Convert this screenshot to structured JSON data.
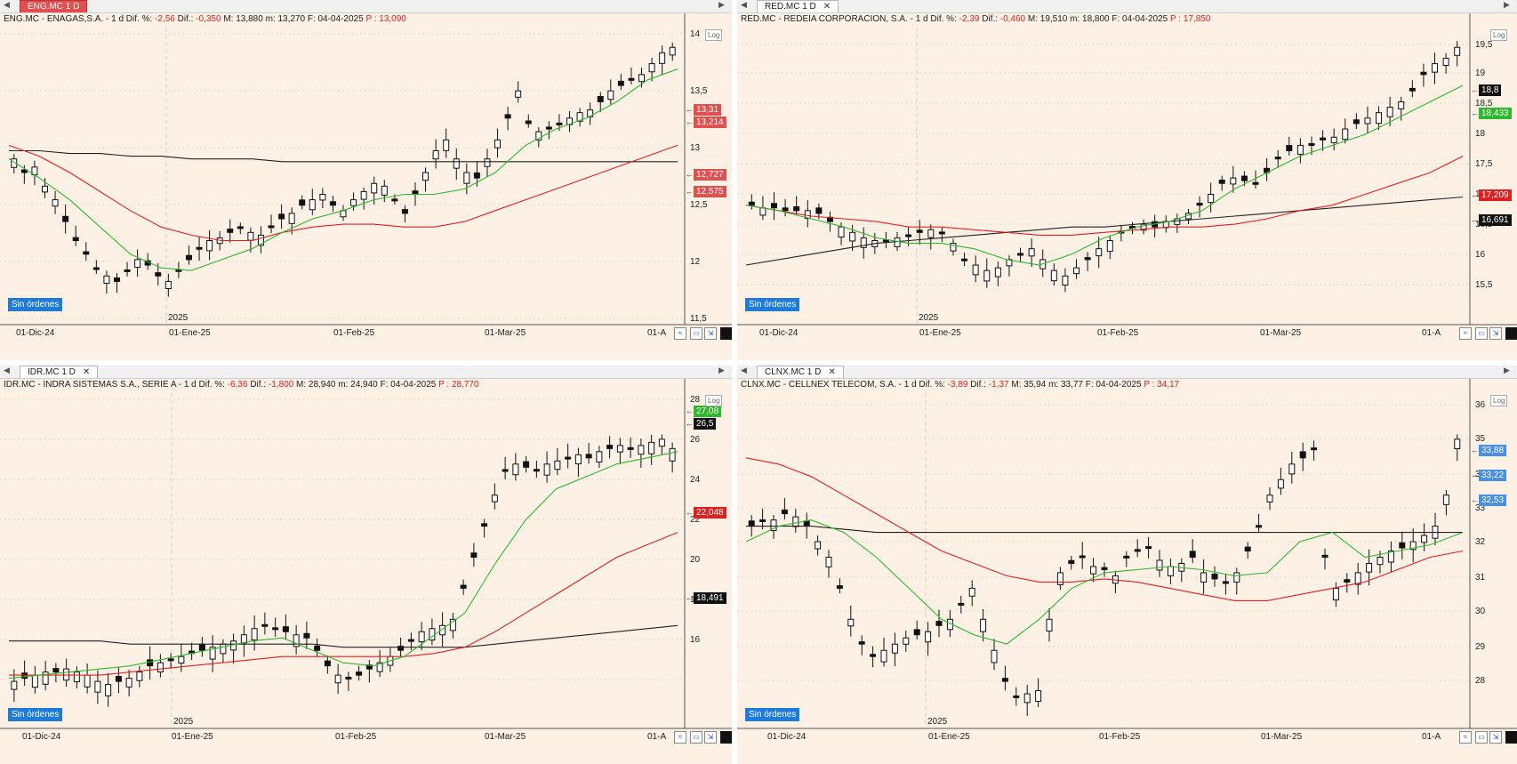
{
  "colors": {
    "ma_fast": "#2db82d",
    "ma_slow": "#e02020",
    "ma_long": "#222222",
    "bg": "#fdf1e6",
    "sin_btn": "#1e7bdc"
  },
  "panes": [
    {
      "tab_label": "ENG.MC 1 D",
      "tab_active": true,
      "info": {
        "head": "ENG.MC - ENAGAS,S.A. - 1 d Dif. %:",
        "pct": "-2,56",
        "dif_label": "Dif.:",
        "dif": "-0,350",
        "mm": "M: 13,880 m: 13,270 F: 04-04-2025",
        "p_label": "P :",
        "p": "13,090"
      },
      "y_ticks": [
        "14",
        "13,5",
        "13",
        "12,5",
        "12",
        "11,5"
      ],
      "x_ticks": [
        "01-Dic-24",
        "01-Ene-25",
        "01-Feb-25",
        "01-Mar-25",
        "01-A"
      ],
      "year_label": "2025",
      "tags": [
        {
          "text": "13,31",
          "color": "#e05050"
        },
        {
          "text": "13,214",
          "color": "#e05050"
        },
        {
          "text": "12,727",
          "color": "#e05050"
        },
        {
          "text": "12,575",
          "color": "#e05050"
        }
      ],
      "sin": "Sin órdenes",
      "log": "Log"
    },
    {
      "tab_label": "RED.MC 1 D",
      "tab_active": false,
      "info": {
        "head": "RED.MC - REDEIA CORPORACION, S.A. - 1 d Dif. %:",
        "pct": "-2,39",
        "dif_label": "Dif.:",
        "dif": "-0,460",
        "mm": "M: 19,510 m: 18,800 F: 04-04-2025",
        "p_label": "P :",
        "p": "17,850"
      },
      "y_ticks": [
        "19,5",
        "19",
        "18,5",
        "18",
        "17,5",
        "17",
        "16,5",
        "16",
        "15,5"
      ],
      "x_ticks": [
        "01-Dic-24",
        "01-Ene-25",
        "01-Feb-25",
        "01-Mar-25",
        "01-A"
      ],
      "year_label": "2025",
      "tags": [
        {
          "text": "18,8",
          "color": "#111111"
        },
        {
          "text": "18,433",
          "color": "#2db82d"
        },
        {
          "text": "17,209",
          "color": "#e02020"
        },
        {
          "text": "16,691",
          "color": "#111111"
        }
      ],
      "sin": "Sin órdenes",
      "log": "Log"
    },
    {
      "tab_label": "IDR.MC 1 D",
      "tab_active": false,
      "info": {
        "head": "IDR.MC - INDRA SISTEMAS S.A., SERIE A - 1 d Dif. %:",
        "pct": "-6,36",
        "dif_label": "Dif.:",
        "dif": "-1,800",
        "mm": "M: 28,940 m: 24,940 F: 04-04-2025",
        "p_label": "P :",
        "p": "28,770"
      },
      "y_ticks": [
        "28",
        "26",
        "24",
        "22",
        "20",
        "18",
        "16"
      ],
      "x_ticks": [
        "01-Dic-24",
        "01-Ene-25",
        "01-Feb-25",
        "01-Mar-25",
        "01-A"
      ],
      "year_label": "2025",
      "tags": [
        {
          "text": "27,08",
          "color": "#2db82d"
        },
        {
          "text": "26,5",
          "color": "#111111"
        },
        {
          "text": "22,048",
          "color": "#e02020"
        },
        {
          "text": "18,491",
          "color": "#111111"
        }
      ],
      "sin": "Sin órdenes",
      "log": "Log"
    },
    {
      "tab_label": "CLNX.MC 1 D",
      "tab_active": false,
      "info": {
        "head": "CLNX.MC - CELLNEX TELECOM, S.A. - 1 d Dif. %:",
        "pct": "-3,89",
        "dif_label": "Dif.:",
        "dif": "-1,37",
        "mm": "M: 35,94 m: 33,77 F: 04-04-2025",
        "p_label": "P :",
        "p": "34,17"
      },
      "y_ticks": [
        "36",
        "35",
        "34",
        "33",
        "32",
        "31",
        "30",
        "29",
        "28"
      ],
      "x_ticks": [
        "01-Dic-24",
        "01-Ene-25",
        "01-Feb-25",
        "01-Mar-25",
        "01-A"
      ],
      "year_label": "2025",
      "tags": [
        {
          "text": "33,88",
          "color": "#4a90e2"
        },
        {
          "text": "33,22",
          "color": "#4a90e2"
        },
        {
          "text": "32,53",
          "color": "#4a90e2"
        }
      ],
      "sin": "Sin órdenes",
      "log": "Log"
    }
  ]
}
